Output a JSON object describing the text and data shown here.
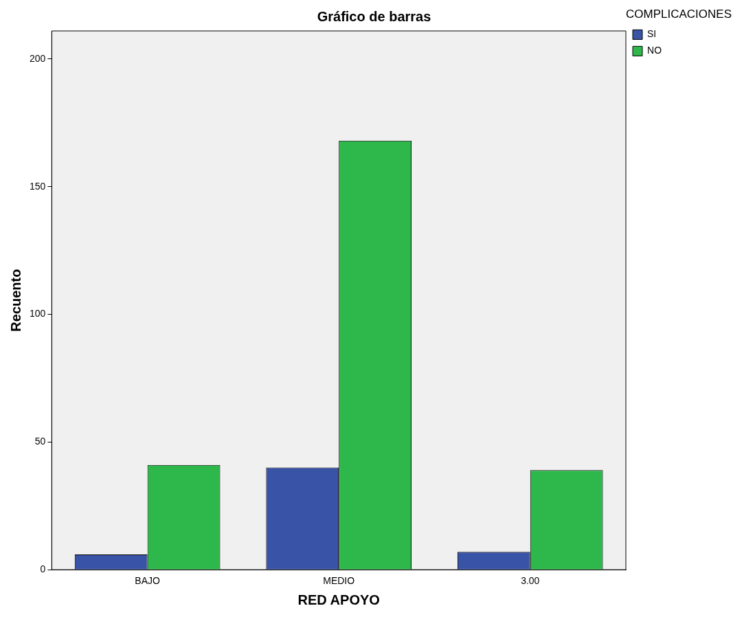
{
  "chart_data": {
    "type": "bar",
    "title": "Gráfico de barras",
    "xlabel": "RED APOYO",
    "ylabel": "Recuento",
    "legend_title": "COMPLICACIONES",
    "categories": [
      "BAJO",
      "MEDIO",
      "3.00"
    ],
    "series": [
      {
        "name": "SI",
        "color": "#3953a6",
        "values": [
          6,
          40,
          7
        ]
      },
      {
        "name": "NO",
        "color": "#2eb84b",
        "values": [
          41,
          168,
          39
        ]
      }
    ],
    "ylim": [
      0,
      211
    ],
    "yticks": [
      0,
      50,
      100,
      150,
      200
    ],
    "grid": false,
    "legend": "top right"
  }
}
